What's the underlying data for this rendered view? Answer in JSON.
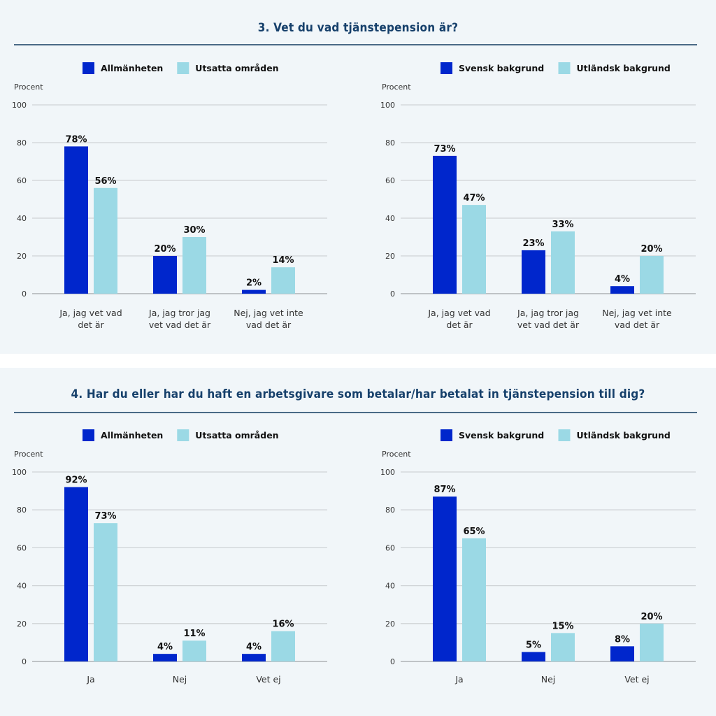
{
  "colors": {
    "dark": "#0026cc",
    "light": "#9bd9e5",
    "grid": "#cfd3d6",
    "background": "#f1f6f9",
    "title": "#16406b"
  },
  "sections": [
    {
      "title": "3. Vet du vad tjänstepension är?"
    },
    {
      "title": "4. Har du eller har du haft en arbetsgivare som betalar/har betalat in tjänstepension till dig?"
    }
  ],
  "chart_data": [
    {
      "type": "bar",
      "section": 0,
      "ylabel": "Procent",
      "ylim": [
        0,
        100
      ],
      "yticks": [
        0,
        20,
        40,
        60,
        80,
        100
      ],
      "grid": true,
      "legend_position": "top",
      "categories": [
        [
          "Ja, jag vet vad",
          "det är"
        ],
        [
          "Ja, jag tror jag",
          "vet vad det är"
        ],
        [
          "Nej, jag vet inte",
          "vad det är"
        ]
      ],
      "series": [
        {
          "name": "Allmänheten",
          "values": [
            78,
            20,
            2
          ],
          "labels": [
            "78%",
            "20%",
            "2%"
          ]
        },
        {
          "name": "Utsatta områden",
          "values": [
            56,
            30,
            14
          ],
          "labels": [
            "56%",
            "30%",
            "14%"
          ]
        }
      ]
    },
    {
      "type": "bar",
      "section": 0,
      "ylabel": "Procent",
      "ylim": [
        0,
        100
      ],
      "yticks": [
        0,
        20,
        40,
        60,
        80,
        100
      ],
      "grid": true,
      "legend_position": "top",
      "categories": [
        [
          "Ja, jag vet vad",
          "det är"
        ],
        [
          "Ja, jag tror jag",
          "vet vad det är"
        ],
        [
          "Nej, jag vet inte",
          "vad det är"
        ]
      ],
      "series": [
        {
          "name": "Svensk bakgrund",
          "values": [
            73,
            23,
            4
          ],
          "labels": [
            "73%",
            "23%",
            "4%"
          ]
        },
        {
          "name": "Utländsk bakgrund",
          "values": [
            47,
            33,
            20
          ],
          "labels": [
            "47%",
            "33%",
            "20%"
          ]
        }
      ]
    },
    {
      "type": "bar",
      "section": 1,
      "ylabel": "Procent",
      "ylim": [
        0,
        100
      ],
      "yticks": [
        0,
        20,
        40,
        60,
        80,
        100
      ],
      "grid": true,
      "legend_position": "top",
      "categories": [
        [
          "Ja"
        ],
        [
          "Nej"
        ],
        [
          "Vet ej"
        ]
      ],
      "series": [
        {
          "name": "Allmänheten",
          "values": [
            92,
            4,
            4
          ],
          "labels": [
            "92%",
            "4%",
            "4%"
          ]
        },
        {
          "name": "Utsatta områden",
          "values": [
            73,
            11,
            16
          ],
          "labels": [
            "73%",
            "11%",
            "16%"
          ]
        }
      ]
    },
    {
      "type": "bar",
      "section": 1,
      "ylabel": "Procent",
      "ylim": [
        0,
        100
      ],
      "yticks": [
        0,
        20,
        40,
        60,
        80,
        100
      ],
      "grid": true,
      "legend_position": "top",
      "categories": [
        [
          "Ja"
        ],
        [
          "Nej"
        ],
        [
          "Vet ej"
        ]
      ],
      "series": [
        {
          "name": "Svensk bakgrund",
          "values": [
            87,
            5,
            8
          ],
          "labels": [
            "87%",
            "5%",
            "8%"
          ]
        },
        {
          "name": "Utländsk bakgrund",
          "values": [
            65,
            15,
            20
          ],
          "labels": [
            "65%",
            "15%",
            "20%"
          ]
        }
      ]
    }
  ]
}
